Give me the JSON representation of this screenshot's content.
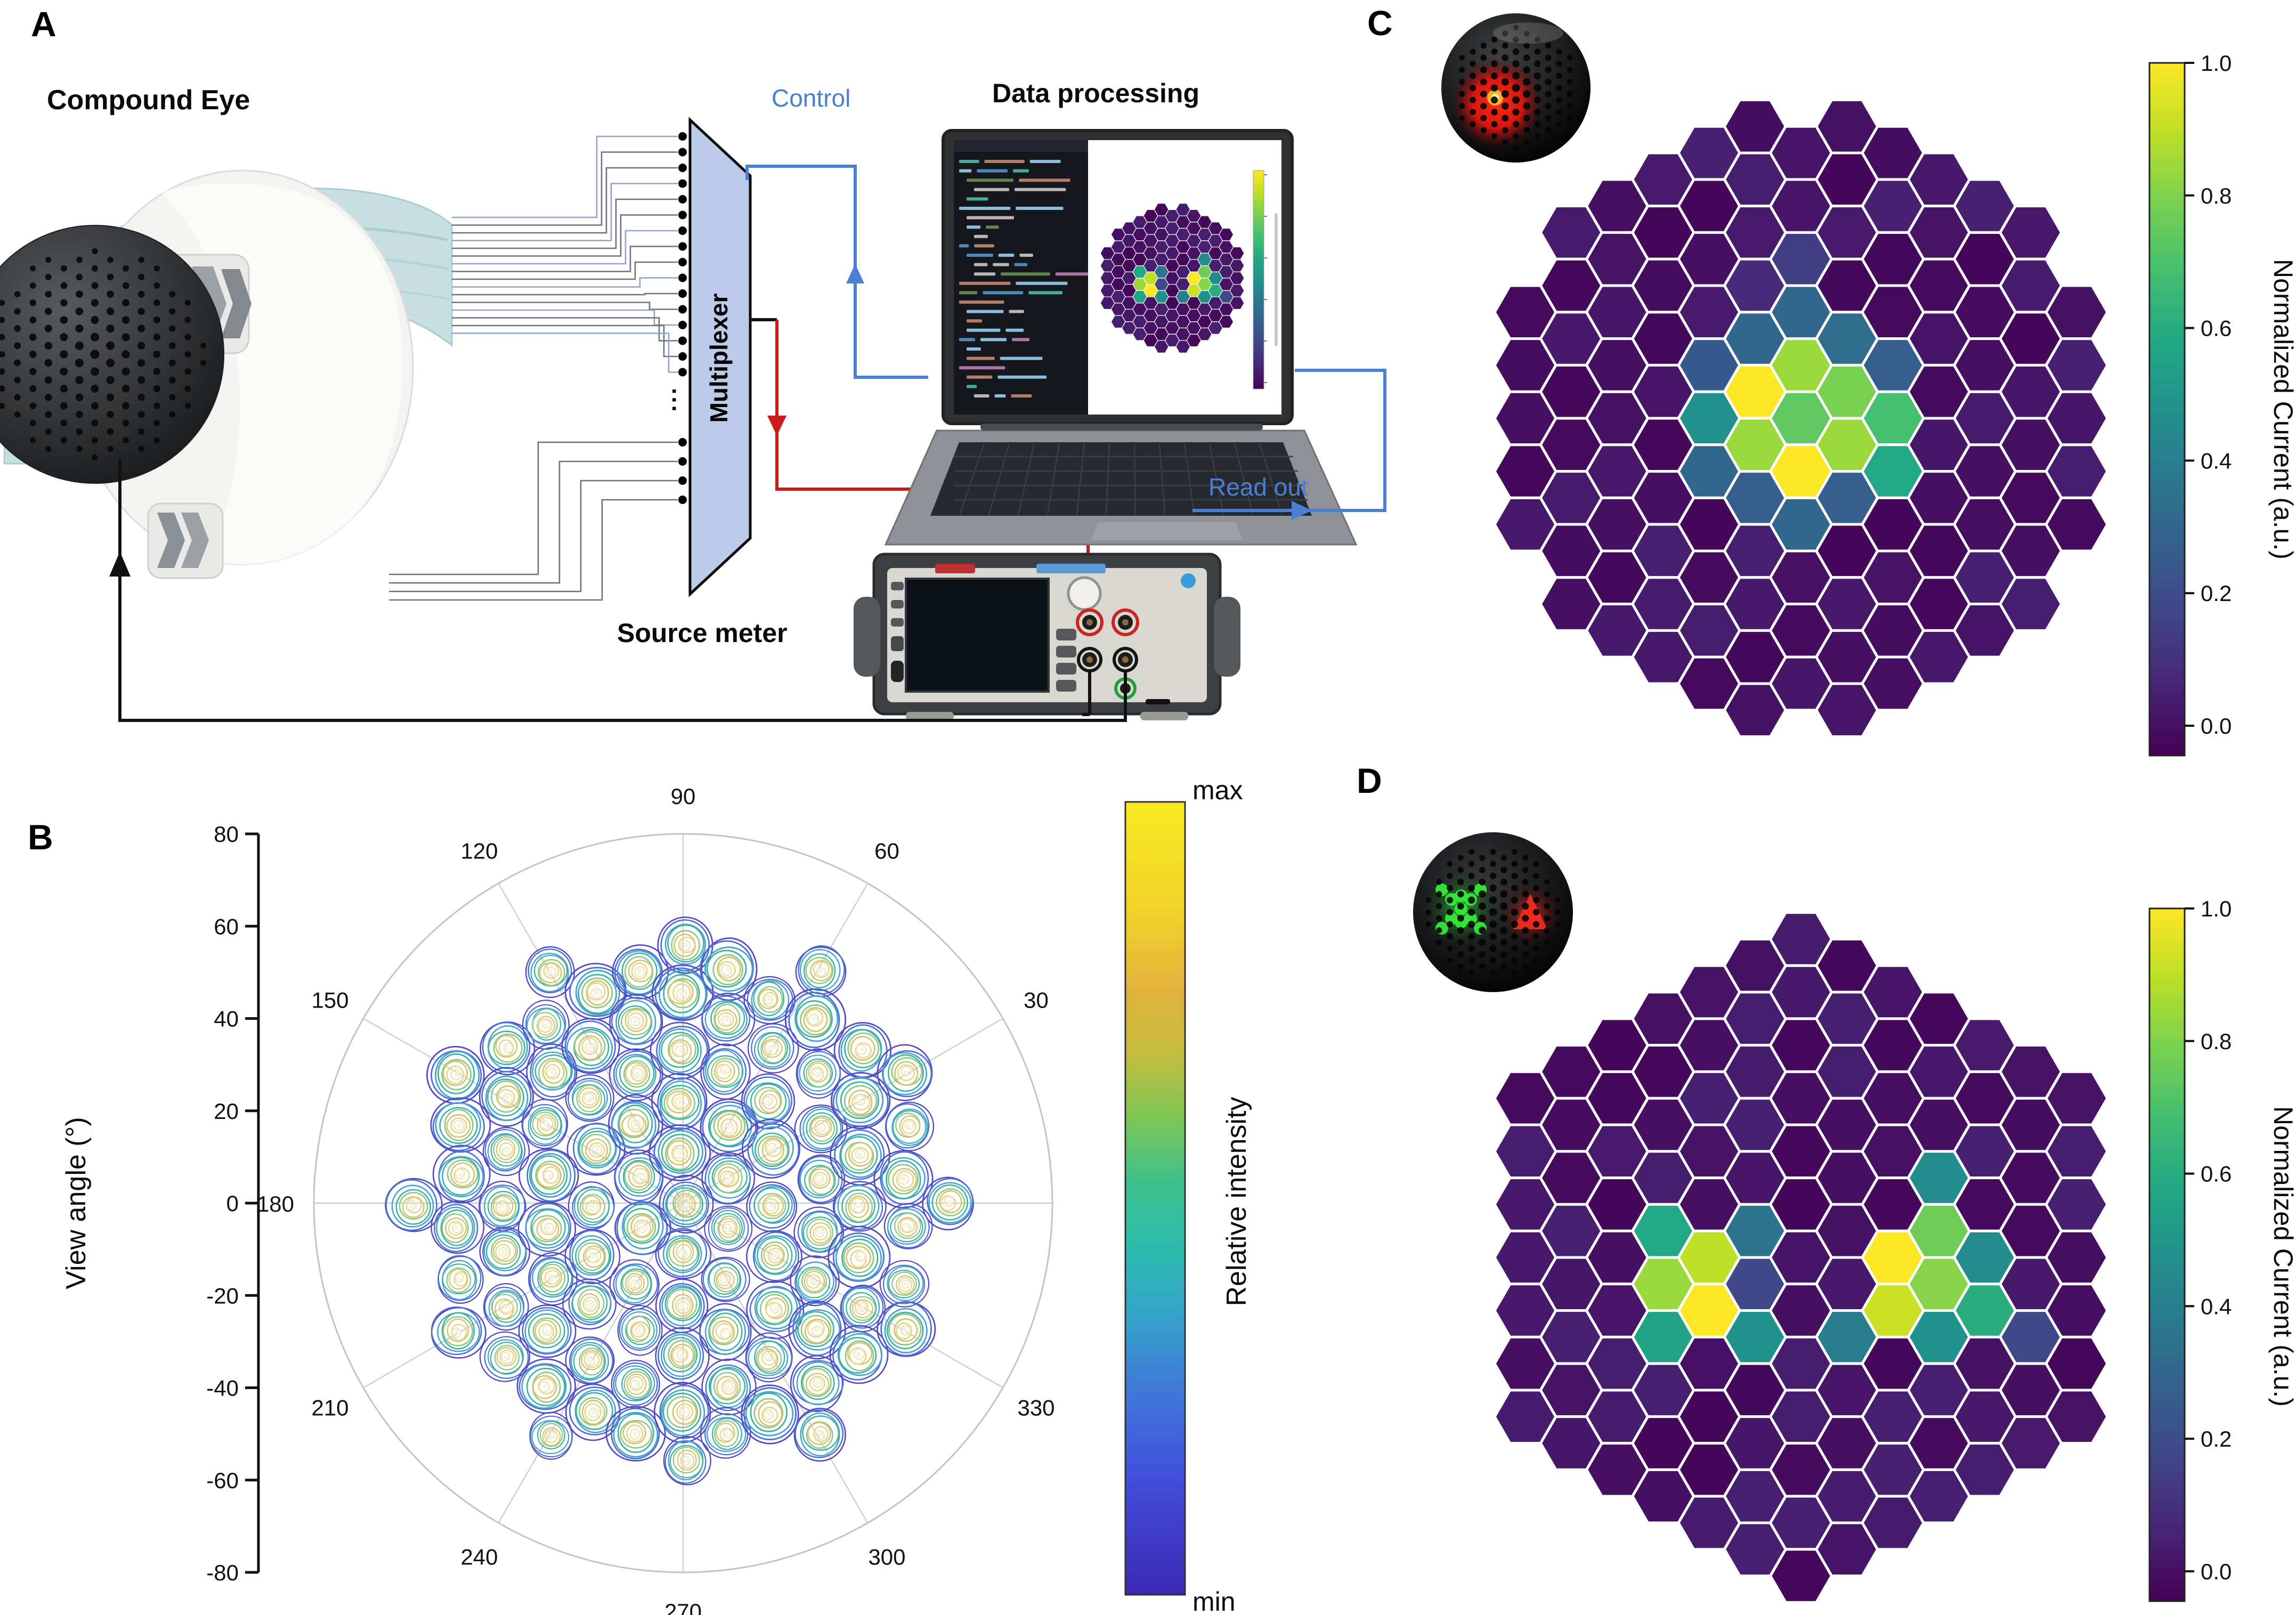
{
  "panel_letters": {
    "a": "A",
    "b": "B",
    "c": "C",
    "d": "D"
  },
  "panel_a": {
    "compound_eye_label": "Compound Eye",
    "multiplexer_label": "Multiplexer",
    "control_label": "Control",
    "data_processing_label": "Data processing",
    "source_meter_label": "Source meter",
    "read_out_label": "Read out",
    "wire_ellipsis": "...",
    "upper_wire_count": 16,
    "lower_wire_count": 4,
    "colors": {
      "control_readout_blue": "#4a7fd4",
      "signal_red": "#c81b1b",
      "wire_black": "#111111",
      "wire_gray": "#6f7377",
      "wire_lightblue": "#8fa3c8",
      "mux_fill": "#bccbe9",
      "mux_border": "#0a0a0a",
      "band_teal": "#c8dfe2",
      "dome_dark": "#2f3133"
    }
  },
  "panel_b": {
    "ylabel": "View angle (°)",
    "y_ticks": [
      80,
      60,
      40,
      20,
      0,
      -20,
      -40,
      -60,
      -80
    ],
    "theta_labels": [
      {
        "deg": 90,
        "text": "90"
      },
      {
        "deg": 120,
        "text": "120"
      },
      {
        "deg": 60,
        "text": "60"
      },
      {
        "deg": 150,
        "text": "150"
      },
      {
        "deg": 30,
        "text": "30"
      },
      {
        "deg": 180,
        "text": "180"
      },
      {
        "deg": 210,
        "text": "210"
      },
      {
        "deg": 330,
        "text": "330"
      },
      {
        "deg": 240,
        "text": "240"
      },
      {
        "deg": 300,
        "text": "300"
      },
      {
        "deg": 270,
        "text": "270"
      }
    ],
    "colorbar": {
      "max_label": "max",
      "min_label": "min",
      "label": "Relative intensity",
      "stops": [
        [
          0,
          "#f9e921"
        ],
        [
          0.14,
          "#f2d22a"
        ],
        [
          0.24,
          "#e2b23c"
        ],
        [
          0.32,
          "#c3bd3e"
        ],
        [
          0.4,
          "#7cc655"
        ],
        [
          0.48,
          "#3fc08c"
        ],
        [
          0.56,
          "#2bbcab"
        ],
        [
          0.64,
          "#34a6c8"
        ],
        [
          0.74,
          "#3f7ad9"
        ],
        [
          0.85,
          "#4150dc"
        ],
        [
          1,
          "#3c28b4"
        ]
      ]
    }
  },
  "panel_c": {
    "colorbar_label": "Normalized Current (a.u.)",
    "colorbar_ticks": [
      1.0,
      0.8,
      0.6,
      0.4,
      0.2,
      0.0
    ]
  },
  "panel_d": {
    "colorbar_label": "Normalized Current (a.u.)",
    "colorbar_ticks": [
      1.0,
      0.8,
      0.6,
      0.4,
      0.2,
      0.0
    ]
  },
  "colors": {
    "viridis_stops": [
      [
        0,
        "#440154"
      ],
      [
        0.1,
        "#482475"
      ],
      [
        0.2,
        "#414487"
      ],
      [
        0.3,
        "#355f8d"
      ],
      [
        0.4,
        "#2a788e"
      ],
      [
        0.5,
        "#21918c"
      ],
      [
        0.6,
        "#22a884"
      ],
      [
        0.7,
        "#44bf70"
      ],
      [
        0.8,
        "#7ad151"
      ],
      [
        0.9,
        "#bddf26"
      ],
      [
        1,
        "#fde725"
      ]
    ],
    "hex_gap_stroke": "#ffffff"
  },
  "chart_data": [
    {
      "id": "panel_b_polar_contour",
      "type": "heatmap",
      "subtype": "polar contour map of ommatidia angular responses",
      "radial_label": "View angle (°)",
      "radial_ticks": [
        80,
        60,
        40,
        20,
        0,
        -20,
        -40,
        -60,
        -80
      ],
      "radial_range": [
        -80,
        80
      ],
      "angle_gridline_step_deg": 30,
      "angle_tick_labels": [
        30,
        60,
        90,
        120,
        150,
        180,
        210,
        240,
        270,
        300,
        330
      ],
      "ommatidium_field_radius_deg": 62,
      "ommatidium_lattice_spacing_deg": 11,
      "contour_ring_colors_outer_to_inner": [
        "#544bc4",
        "#4a72d2",
        "#4aa0d2",
        "#3cb4a4",
        "#90c788",
        "#d2c56e",
        "#e3d791",
        "#efe8c0"
      ],
      "blob_center_color": "#f7f3e0",
      "legend": {
        "top": "max",
        "bottom": "min",
        "label": "Relative intensity"
      }
    },
    {
      "id": "panel_c_hexmap",
      "type": "heatmap",
      "subtype": "hexagonal ommatidia current map, single red spot",
      "value_label": "Normalized Current (a.u.)",
      "colorbar_ticks": [
        1.0,
        0.8,
        0.6,
        0.4,
        0.2,
        0.0
      ],
      "value_range": [
        0.0,
        1.0
      ],
      "hex_orientation": "flat_top",
      "cells_axial_qrv": [
        [
          0,
          0,
          0.75
        ],
        [
          0,
          -1,
          0.85
        ],
        [
          0,
          1,
          1.0
        ],
        [
          -1,
          0,
          1.0
        ],
        [
          -1,
          1,
          0.85
        ],
        [
          1,
          -1,
          0.8
        ],
        [
          1,
          0,
          0.85
        ],
        [
          0,
          -2,
          0.33
        ],
        [
          0,
          2,
          0.33
        ],
        [
          -2,
          0,
          0.28
        ],
        [
          -2,
          1,
          0.5
        ],
        [
          -2,
          2,
          0.33
        ],
        [
          2,
          -2,
          0.3
        ],
        [
          2,
          -1,
          0.7
        ],
        [
          2,
          0,
          0.6
        ],
        [
          -1,
          -1,
          0.33
        ],
        [
          -1,
          2,
          0.3
        ],
        [
          1,
          -2,
          0.35
        ],
        [
          1,
          1,
          0.3
        ],
        [
          0,
          -3,
          0.18
        ],
        [
          -1,
          -2,
          0.12
        ]
      ],
      "background_value_range": [
        0.01,
        0.09
      ],
      "noise_seed": 11
    },
    {
      "id": "panel_d_hexmap",
      "type": "heatmap",
      "subtype": "hexagonal ommatidia current map, two spots (green cross + red triangle)",
      "value_label": "Normalized Current (a.u.)",
      "colorbar_ticks": [
        1.0,
        0.8,
        0.6,
        0.4,
        0.2,
        0.0
      ],
      "value_range": [
        0.0,
        1.0
      ],
      "hex_orientation": "flat_top",
      "cells_axial_qrv": [
        [
          -2,
          2,
          1.0
        ],
        [
          -2,
          1,
          0.9
        ],
        [
          -3,
          1,
          0.6
        ],
        [
          -3,
          2,
          0.85
        ],
        [
          -3,
          3,
          0.58
        ],
        [
          -1,
          0,
          0.38
        ],
        [
          -1,
          1,
          0.22
        ],
        [
          -1,
          2,
          0.5
        ],
        [
          3,
          -3,
          0.48
        ],
        [
          3,
          -2,
          0.78
        ],
        [
          3,
          -1,
          0.82
        ],
        [
          3,
          0,
          0.5
        ],
        [
          2,
          -1,
          1.0
        ],
        [
          2,
          0,
          0.92
        ],
        [
          4,
          -2,
          0.48
        ],
        [
          4,
          -1,
          0.62
        ],
        [
          1,
          1,
          0.42
        ],
        [
          5,
          -1,
          0.22
        ]
      ],
      "background_value_range": [
        0.01,
        0.09
      ],
      "noise_seed": 29
    }
  ]
}
